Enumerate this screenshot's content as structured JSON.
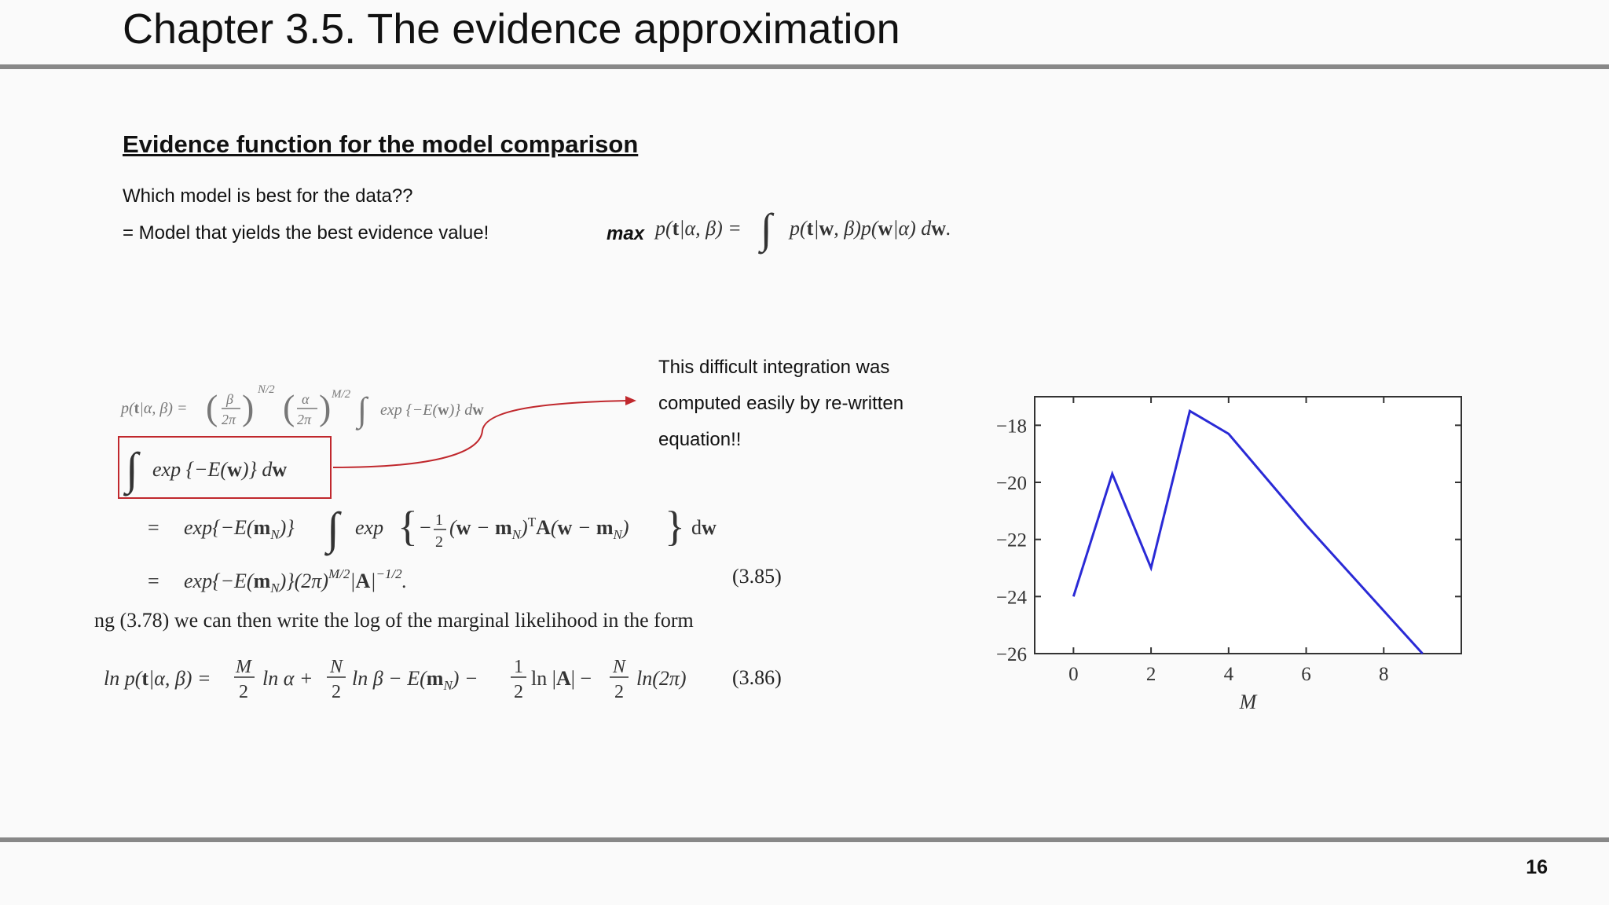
{
  "slide": {
    "title": "Chapter 3.5. The evidence approximation",
    "section_title": "Evidence function for the model comparison",
    "question": "Which model is best for the data??",
    "answer": "= Model that yields the best evidence value!",
    "max_label": "max",
    "evidence_formula": "p(t|α, β) = ∫ p(t|w, β)p(w|α) dw.",
    "formula_line1": "p(t|α, β) = (β/2π)^{N/2} (α/2π)^{M/2} ∫ exp{−E(w)} dw",
    "boxed_integral": "∫ exp{−E(w)} dw",
    "formula_line3": "= exp{−E(mN)} ∫ exp{ −½(w − mN)ᵀA(w − mN) } dw",
    "formula_line4": "= exp{−E(mN)}(2π)^{M/2}|A|^{−1/2}.",
    "eq_385": "(3.85)",
    "sentence": "ng (3.78) we can then write the log of the marginal likelihood in the form",
    "formula_line6": "ln p(t|α, β) = M/2 ln α + N/2 ln β − E(mN) − ½ ln|A| − N/2 ln(2π)",
    "eq_386": "(3.86)",
    "note_lines": [
      "This difficult integration was",
      "computed easily by re-written",
      "equation!!"
    ],
    "page_number": "16",
    "colors": {
      "highlight": "#c0282d",
      "rule": "#888888",
      "series": "#2a2ad6"
    }
  },
  "chart_data": {
    "type": "line",
    "xlabel": "M",
    "ylabel": "",
    "x": [
      0,
      1,
      2,
      3,
      4,
      5,
      6,
      7,
      8,
      9
    ],
    "series": [
      {
        "values": [
          -24.0,
          -19.7,
          -23.0,
          -17.5,
          -18.3,
          -19.9,
          -21.5,
          -23.0,
          -24.5,
          -26.0
        ]
      }
    ],
    "xlim": [
      -1,
      10
    ],
    "ylim": [
      -26,
      -17
    ],
    "xticks": [
      "0",
      "2",
      "4",
      "6",
      "8"
    ],
    "yticks": [
      "−18",
      "−20",
      "−22",
      "−24",
      "−26"
    ],
    "grid": false
  }
}
